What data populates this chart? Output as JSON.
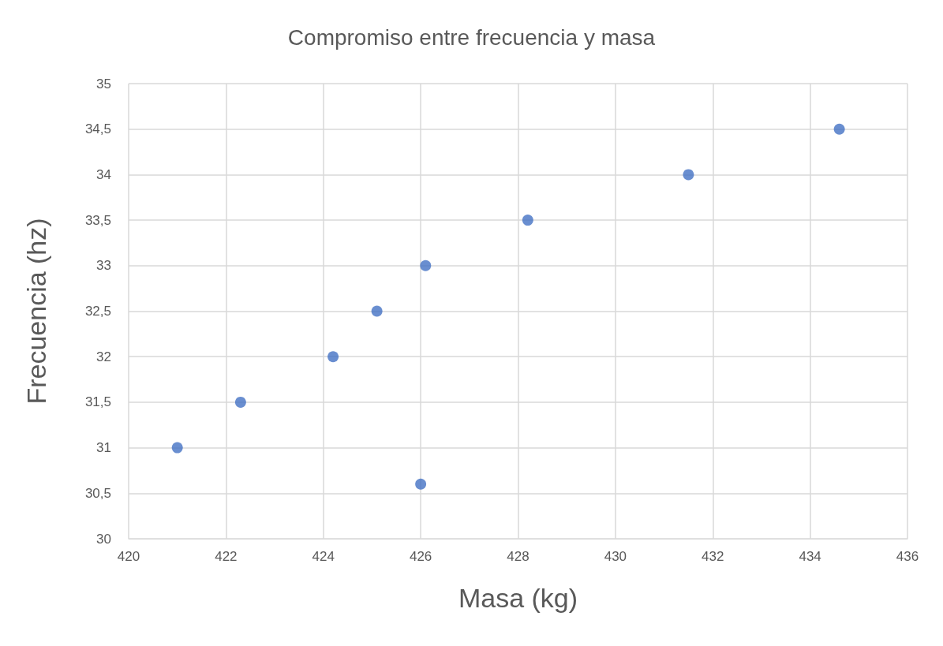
{
  "chart_data": {
    "type": "scatter",
    "title": "Compromiso entre frecuencia y masa",
    "xlabel": "Masa (kg)",
    "ylabel": "Frecuencia (hz)",
    "x": [
      421.0,
      422.3,
      424.2,
      425.1,
      426.1,
      426.0,
      428.2,
      431.5,
      434.6
    ],
    "series": [
      {
        "color": "#4472c4",
        "values": [
          31.0,
          31.5,
          32.0,
          32.5,
          33.0,
          30.6,
          33.5,
          34.0,
          34.5
        ]
      }
    ],
    "xlim": [
      420,
      436
    ],
    "xticks": [
      420,
      422,
      424,
      426,
      428,
      430,
      432,
      434,
      436
    ],
    "ylim": [
      30,
      35
    ],
    "yticks": [
      30,
      {
        "value": 30.5,
        "label": "30,5"
      },
      31,
      {
        "value": 31.5,
        "label": "31,5"
      },
      32,
      {
        "value": 32.5,
        "label": "32,5"
      },
      33,
      {
        "value": 33.5,
        "label": "33,5"
      },
      34,
      {
        "value": 34.5,
        "label": "34,5"
      },
      35
    ],
    "grid": true,
    "marker": "circle"
  }
}
